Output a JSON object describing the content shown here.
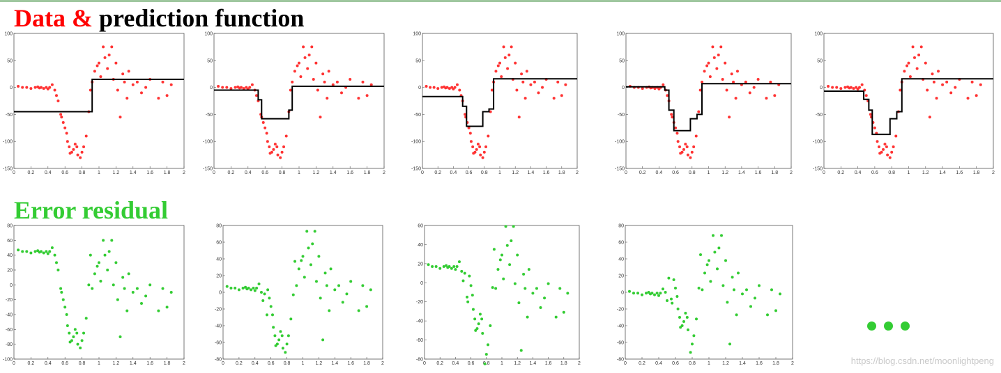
{
  "title_top": {
    "part1": "Data & ",
    "part2": "prediction function",
    "color1": "#ff0000",
    "color2": "#000000"
  },
  "title_bottom": {
    "text": "Error residual",
    "color": "#33cc33"
  },
  "colors": {
    "data": "#ff3333",
    "residual": "#33cc33",
    "prediction": "#000000"
  },
  "watermark": "https://blog.csdn.net/moonlightpeng",
  "ellipsis_icon": "three-green-dots",
  "chart_data": [
    {
      "type": "scatter",
      "kind": "data-and-prediction",
      "xlim": [
        0,
        2
      ],
      "ylim": [
        -150,
        100
      ],
      "xticks": [
        "0",
        "0.2",
        "0.4",
        "0.6",
        "0.8",
        "1",
        "1.2",
        "1.4",
        "1.6",
        "1.8",
        "2"
      ],
      "yticks": [
        "-150",
        "-100",
        "-50",
        "0",
        "50",
        "100"
      ],
      "series": [
        {
          "values_ref": "data"
        }
      ],
      "prediction": [
        [
          0,
          -45
        ],
        [
          0.92,
          -45
        ],
        [
          0.92,
          15
        ],
        [
          2,
          15
        ]
      ]
    },
    {
      "type": "scatter",
      "kind": "data-and-prediction",
      "xlim": [
        0,
        2
      ],
      "ylim": [
        -150,
        100
      ],
      "xticks": [
        "0",
        "0.2",
        "0.4",
        "0.6",
        "0.8",
        "1",
        "1.2",
        "1.4",
        "1.6",
        "1.8",
        "2"
      ],
      "yticks": [
        "-150",
        "-100",
        "-50",
        "0",
        "50",
        "100"
      ],
      "prediction": [
        [
          0,
          -5
        ],
        [
          0.52,
          -5
        ],
        [
          0.52,
          -23
        ],
        [
          0.56,
          -23
        ],
        [
          0.56,
          -58
        ],
        [
          0.88,
          -58
        ],
        [
          0.88,
          -42
        ],
        [
          0.92,
          -42
        ],
        [
          0.92,
          2
        ],
        [
          2,
          2
        ]
      ]
    },
    {
      "type": "scatter",
      "kind": "data-and-prediction",
      "xlim": [
        0,
        2
      ],
      "ylim": [
        -150,
        100
      ],
      "xticks": [
        "0",
        "0.2",
        "0.4",
        "0.6",
        "0.8",
        "1",
        "1.2",
        "1.4",
        "1.6",
        "1.8",
        "2"
      ],
      "yticks": [
        "-150",
        "-100",
        "-50",
        "0",
        "50",
        "100"
      ],
      "prediction": [
        [
          0,
          -17
        ],
        [
          0.52,
          -17
        ],
        [
          0.52,
          -35
        ],
        [
          0.57,
          -35
        ],
        [
          0.57,
          -72
        ],
        [
          0.78,
          -72
        ],
        [
          0.78,
          -45
        ],
        [
          0.86,
          -45
        ],
        [
          0.86,
          -40
        ],
        [
          0.92,
          -40
        ],
        [
          0.92,
          16
        ],
        [
          2,
          16
        ]
      ]
    },
    {
      "type": "scatter",
      "kind": "data-and-prediction",
      "xlim": [
        0,
        2
      ],
      "ylim": [
        -150,
        100
      ],
      "xticks": [
        "0",
        "0.2",
        "0.4",
        "0.6",
        "0.8",
        "1",
        "1.2",
        "1.4",
        "1.6",
        "1.8",
        "2"
      ],
      "yticks": [
        "-150",
        "-100",
        "-50",
        "0",
        "50",
        "100"
      ],
      "prediction": [
        [
          0,
          1
        ],
        [
          0.47,
          1
        ],
        [
          0.47,
          -5
        ],
        [
          0.52,
          -5
        ],
        [
          0.52,
          -42
        ],
        [
          0.58,
          -42
        ],
        [
          0.58,
          -80
        ],
        [
          0.78,
          -80
        ],
        [
          0.78,
          -58
        ],
        [
          0.86,
          -58
        ],
        [
          0.86,
          -50
        ],
        [
          0.92,
          -50
        ],
        [
          0.92,
          7
        ],
        [
          2,
          7
        ]
      ]
    },
    {
      "type": "scatter",
      "kind": "data-and-prediction",
      "xlim": [
        0,
        2
      ],
      "ylim": [
        -150,
        100
      ],
      "xticks": [
        "0",
        "0.2",
        "0.4",
        "0.6",
        "0.8",
        "1",
        "1.2",
        "1.4",
        "1.6",
        "1.8",
        "2"
      ],
      "yticks": [
        "-150",
        "-100",
        "-50",
        "0",
        "50",
        "100"
      ],
      "prediction": [
        [
          0,
          -7
        ],
        [
          0.47,
          -7
        ],
        [
          0.47,
          -22
        ],
        [
          0.53,
          -22
        ],
        [
          0.53,
          -42
        ],
        [
          0.57,
          -42
        ],
        [
          0.57,
          -87
        ],
        [
          0.78,
          -87
        ],
        [
          0.78,
          -58
        ],
        [
          0.86,
          -58
        ],
        [
          0.86,
          -45
        ],
        [
          0.92,
          -45
        ],
        [
          0.92,
          16
        ],
        [
          2,
          16
        ]
      ]
    },
    {
      "type": "scatter",
      "kind": "residual",
      "xlim": [
        0,
        2
      ],
      "ylim": [
        -100,
        80
      ],
      "xticks": [
        "0",
        "0.2",
        "0.4",
        "0.6",
        "0.8",
        "1",
        "1.2",
        "1.4",
        "1.6",
        "1.8",
        "2"
      ],
      "yticks": [
        "-100",
        "-80",
        "-60",
        "-40",
        "-20",
        "0",
        "20",
        "40",
        "60",
        "80"
      ]
    },
    {
      "type": "scatter",
      "kind": "residual",
      "xlim": [
        0,
        2
      ],
      "ylim": [
        -80,
        80
      ],
      "xticks": [
        "0",
        "0.2",
        "0.4",
        "0.6",
        "0.8",
        "1",
        "1.2",
        "1.4",
        "1.6",
        "1.8",
        "2"
      ],
      "yticks": [
        "-80",
        "-60",
        "-40",
        "-20",
        "0",
        "20",
        "40",
        "60",
        "80"
      ]
    },
    {
      "type": "scatter",
      "kind": "residual",
      "xlim": [
        0,
        2
      ],
      "ylim": [
        -80,
        60
      ],
      "xticks": [
        "0",
        "0.2",
        "0.4",
        "0.6",
        "0.8",
        "1",
        "1.2",
        "1.4",
        "1.6",
        "1.8",
        "2"
      ],
      "yticks": [
        "-80",
        "-60",
        "-40",
        "-20",
        "0",
        "20",
        "40",
        "60"
      ]
    },
    {
      "type": "scatter",
      "kind": "residual",
      "xlim": [
        0,
        2
      ],
      "ylim": [
        -80,
        80
      ],
      "xticks": [
        "0",
        "0.2",
        "0.4",
        "0.6",
        "0.8",
        "1",
        "1.2",
        "1.4",
        "1.6",
        "1.8",
        "2"
      ],
      "yticks": [
        "-80",
        "-60",
        "-40",
        "-20",
        "0",
        "20",
        "40",
        "60",
        "80"
      ]
    }
  ],
  "data_points": {
    "x": [
      0.05,
      0.1,
      0.15,
      0.2,
      0.25,
      0.28,
      0.3,
      0.32,
      0.35,
      0.38,
      0.4,
      0.42,
      0.45,
      0.48,
      0.5,
      0.52,
      0.55,
      0.56,
      0.58,
      0.6,
      0.62,
      0.63,
      0.65,
      0.66,
      0.68,
      0.7,
      0.72,
      0.74,
      0.75,
      0.78,
      0.8,
      0.82,
      0.85,
      0.88,
      0.9,
      0.92,
      0.95,
      0.98,
      1.0,
      1.02,
      1.05,
      1.07,
      1.1,
      1.12,
      1.15,
      1.17,
      1.2,
      1.22,
      1.25,
      1.28,
      1.3,
      1.33,
      1.35,
      1.4,
      1.45,
      1.5,
      1.55,
      1.6,
      1.7,
      1.75,
      1.8,
      1.85
    ],
    "y": [
      2,
      0,
      0,
      -2,
      0,
      1,
      -1,
      0,
      -2,
      0,
      -3,
      0,
      5,
      -5,
      -15,
      -25,
      -50,
      -55,
      -65,
      -75,
      -85,
      -100,
      -110,
      -122,
      -120,
      -115,
      -105,
      -110,
      -125,
      -130,
      -120,
      -110,
      -90,
      -45,
      -5,
      10,
      30,
      40,
      45,
      20,
      75,
      55,
      35,
      60,
      75,
      15,
      45,
      -5,
      -55,
      25,
      10,
      -20,
      30,
      5,
      10,
      -10,
      0,
      15,
      -20,
      10,
      -15,
      5
    ]
  }
}
